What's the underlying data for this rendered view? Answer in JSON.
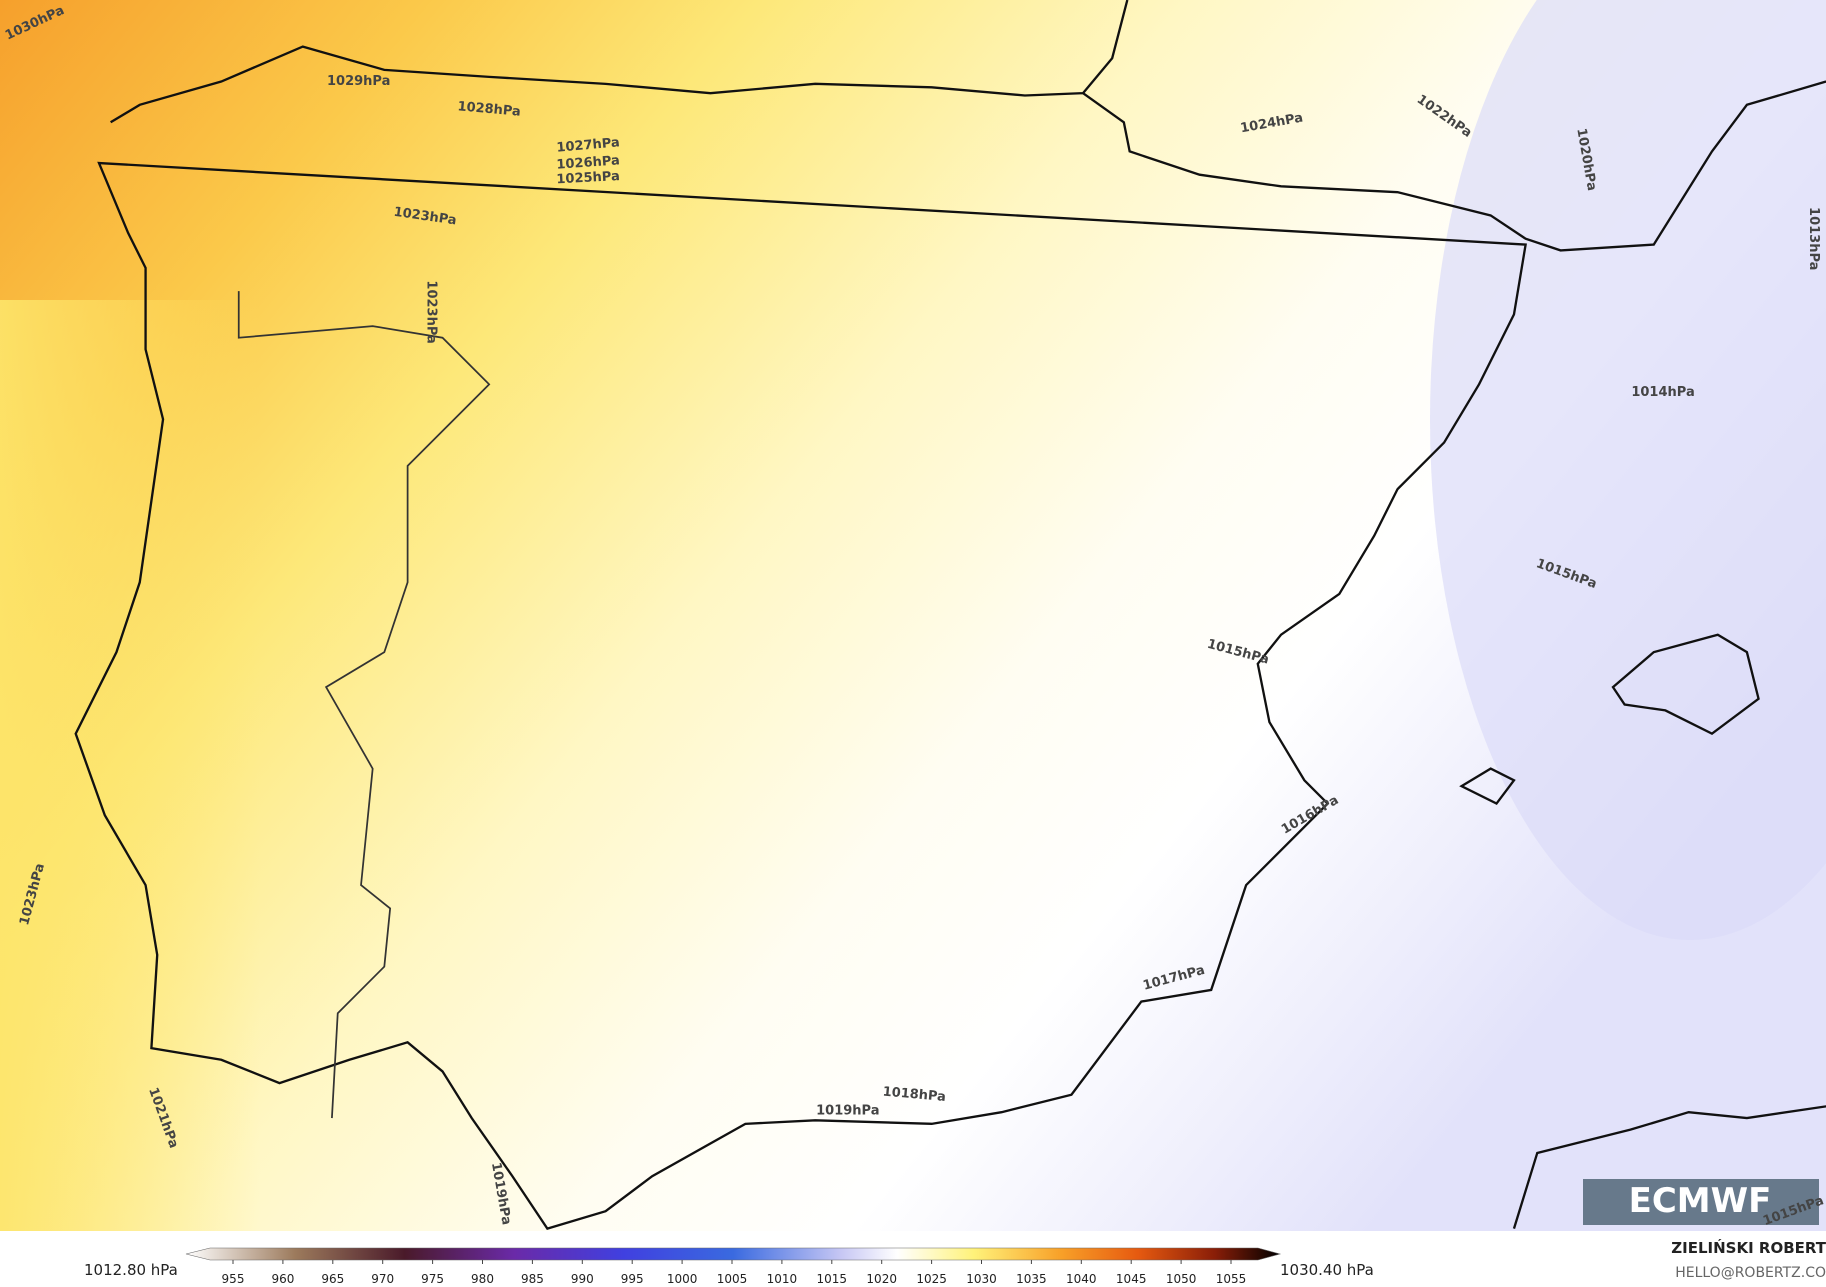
{
  "map": {
    "isobar_labels": [
      "1030hPa",
      "1029hPa",
      "1028hPa",
      "1027hPa",
      "1026hPa",
      "1025hPa",
      "1023hPa",
      "1023hPa",
      "1024hPa",
      "1022hPa",
      "1020hPa",
      "1013hPa",
      "1014hPa",
      "1015hPa",
      "1015hPa",
      "1016hPa",
      "1017hPa",
      "1018hPa",
      "1019hPa",
      "1019hPa",
      "1021hPa",
      "1023hPa",
      "1015hPa"
    ],
    "logo": "ECMWF"
  },
  "colorbar": {
    "min_label": "1012.80 hPa",
    "max_label": "1030.40 hPa",
    "ticks": [
      955,
      960,
      965,
      970,
      975,
      980,
      985,
      990,
      995,
      1000,
      1005,
      1010,
      1015,
      1020,
      1025,
      1030,
      1035,
      1040,
      1045,
      1050,
      1055
    ]
  },
  "credits": {
    "author": "ZIELIŃSKI ROBERT",
    "contact": "HELLO@ROBERTZ.CO"
  }
}
